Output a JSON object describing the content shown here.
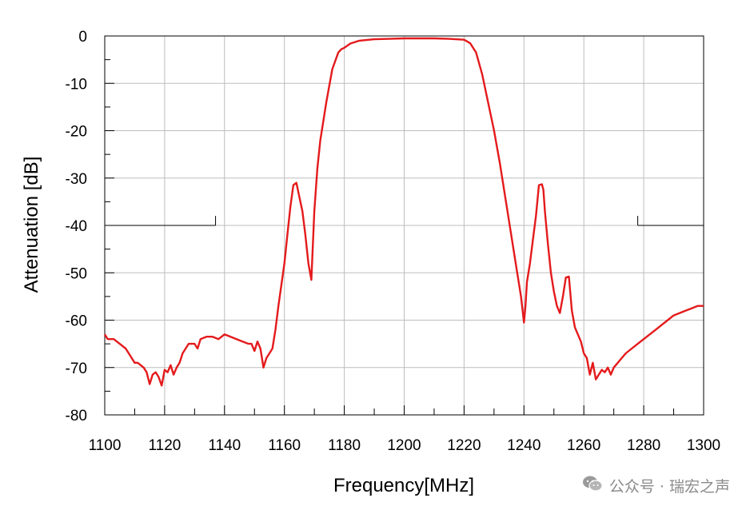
{
  "chart_data": {
    "type": "line",
    "title": "",
    "xlabel": "Frequency[MHz]",
    "ylabel": "Attenuation [dB]",
    "xlim": [
      1100,
      1300
    ],
    "ylim": [
      -80,
      0
    ],
    "x_ticks": [
      1100,
      1120,
      1140,
      1160,
      1180,
      1200,
      1220,
      1240,
      1260,
      1280,
      1300
    ],
    "y_ticks": [
      0,
      -10,
      -20,
      -30,
      -40,
      -50,
      -60,
      -70,
      -80
    ],
    "grid": true,
    "series": [
      {
        "color": "#e41a1c",
        "x": [
          1100,
          1101,
          1103,
          1105,
          1107,
          1109,
          1110,
          1111,
          1113,
          1114,
          1115,
          1116,
          1117,
          1118,
          1119,
          1120,
          1121,
          1122,
          1123,
          1124,
          1125,
          1126,
          1128,
          1130,
          1131,
          1132,
          1134,
          1136,
          1138,
          1140,
          1142,
          1144,
          1146,
          1148,
          1149,
          1150,
          1151,
          1152,
          1153,
          1154,
          1155,
          1156,
          1157,
          1158,
          1160,
          1161,
          1162,
          1163,
          1164,
          1165,
          1166,
          1167,
          1168,
          1169,
          1170,
          1171,
          1172,
          1174,
          1176,
          1178,
          1179,
          1180,
          1182,
          1185,
          1190,
          1195,
          1200,
          1205,
          1210,
          1215,
          1220,
          1222,
          1224,
          1226,
          1228,
          1230,
          1232,
          1234,
          1236,
          1238,
          1239,
          1240,
          1240.5,
          1241,
          1242,
          1243,
          1244,
          1245,
          1246,
          1246.5,
          1247,
          1248,
          1249,
          1250,
          1251,
          1252,
          1253,
          1254,
          1255,
          1256,
          1257,
          1258,
          1259,
          1260,
          1261,
          1262,
          1263,
          1264,
          1265,
          1266,
          1267,
          1268,
          1269,
          1270,
          1272,
          1274,
          1276,
          1278,
          1280,
          1282,
          1284,
          1286,
          1288,
          1290,
          1292,
          1294,
          1296,
          1298,
          1300
        ],
        "y": [
          -63,
          -64,
          -64,
          -65,
          -66,
          -68,
          -69,
          -69,
          -70,
          -71,
          -73.5,
          -71.5,
          -71,
          -72,
          -73.8,
          -70.5,
          -71,
          -69.5,
          -71.5,
          -70,
          -69,
          -67,
          -65,
          -65,
          -66,
          -64,
          -63.5,
          -63.5,
          -64,
          -63,
          -63.5,
          -64,
          -64.5,
          -65,
          -65,
          -66.5,
          -64.5,
          -66,
          -70,
          -68,
          -67,
          -66,
          -62,
          -57,
          -48,
          -42,
          -36,
          -31.5,
          -31,
          -34,
          -37,
          -42,
          -48,
          -51.5,
          -37,
          -28,
          -22,
          -14,
          -7,
          -3.5,
          -2.8,
          -2.5,
          -1.6,
          -1,
          -0.7,
          -0.6,
          -0.5,
          -0.5,
          -0.5,
          -0.6,
          -0.8,
          -1.5,
          -3.5,
          -8,
          -14,
          -20,
          -27,
          -35,
          -43,
          -51,
          -55,
          -60.5,
          -57,
          -52,
          -48,
          -43,
          -38,
          -31.5,
          -31.3,
          -32.5,
          -37,
          -44,
          -50,
          -54,
          -57,
          -58.5,
          -55,
          -51,
          -50.8,
          -58,
          -61.5,
          -63,
          -64.5,
          -67,
          -68,
          -71.5,
          -69,
          -72.5,
          -71.5,
          -70.5,
          -71,
          -70,
          -71.5,
          -70,
          -68.5,
          -67,
          -66,
          -65,
          -64,
          -63,
          -62,
          -61,
          -60,
          -59,
          -58.5,
          -58,
          -57.5,
          -57,
          -57
        ]
      }
    ],
    "annotations": [
      {
        "type": "spec-line",
        "x": [
          1100,
          1137
        ],
        "y": -40,
        "marker_to": -38
      },
      {
        "type": "spec-line",
        "x": [
          1278,
          1300
        ],
        "y": -40,
        "marker_to": -38
      }
    ]
  },
  "watermark": {
    "text": "公众号 · 瑞宏之声",
    "icon": "wechat-icon"
  }
}
